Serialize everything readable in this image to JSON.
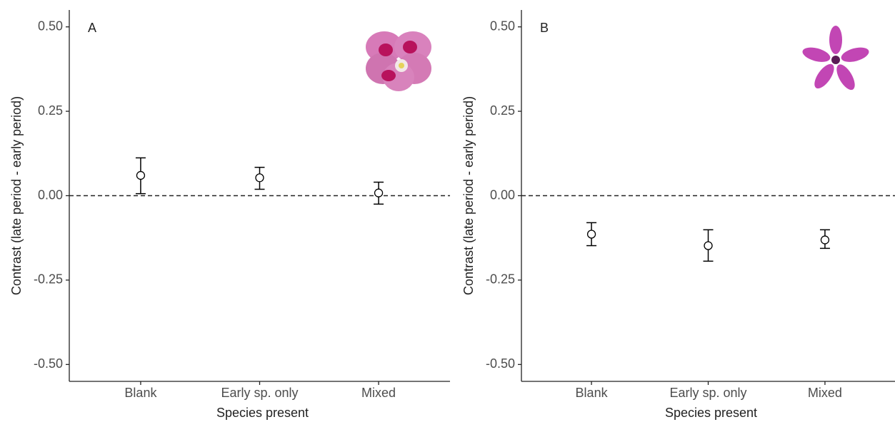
{
  "chart_data": [
    {
      "type": "errorbar",
      "title": "A",
      "x_label": "Species present",
      "y_label": "Contrast (late period - early period)",
      "categories": [
        "Blank",
        "Early sp. only",
        "Mixed"
      ],
      "values": [
        0.06,
        0.053,
        0.008
      ],
      "lower": [
        0.006,
        0.019,
        -0.025
      ],
      "upper": [
        0.112,
        0.084,
        0.04
      ],
      "ylim": [
        -0.55,
        0.55
      ],
      "yticks": [
        {
          "value": -0.5,
          "label": "-0.50"
        },
        {
          "value": -0.25,
          "label": "-0.25"
        },
        {
          "value": 0,
          "label": "0.00"
        },
        {
          "value": 0.25,
          "label": "0.25"
        },
        {
          "value": 0.5,
          "label": "0.50"
        }
      ],
      "hline": 0,
      "color": "#000000"
    },
    {
      "type": "errorbar",
      "title": "B",
      "x_label": "Species present",
      "y_label": "Contrast (late period - early period)",
      "categories": [
        "Blank",
        "Early sp. only",
        "Mixed"
      ],
      "values": [
        -0.114,
        -0.148,
        -0.131
      ],
      "lower": [
        -0.148,
        -0.194,
        -0.156
      ],
      "upper": [
        -0.08,
        -0.101,
        -0.101
      ],
      "ylim": [
        -0.55,
        0.55
      ],
      "yticks": [
        {
          "value": -0.5,
          "label": "-0.50"
        },
        {
          "value": -0.25,
          "label": "-0.25"
        },
        {
          "value": 0,
          "label": "0.00"
        },
        {
          "value": 0.25,
          "label": "0.25"
        },
        {
          "value": 0.5,
          "label": "0.50"
        }
      ],
      "hline": 0,
      "color": "#000000"
    }
  ]
}
